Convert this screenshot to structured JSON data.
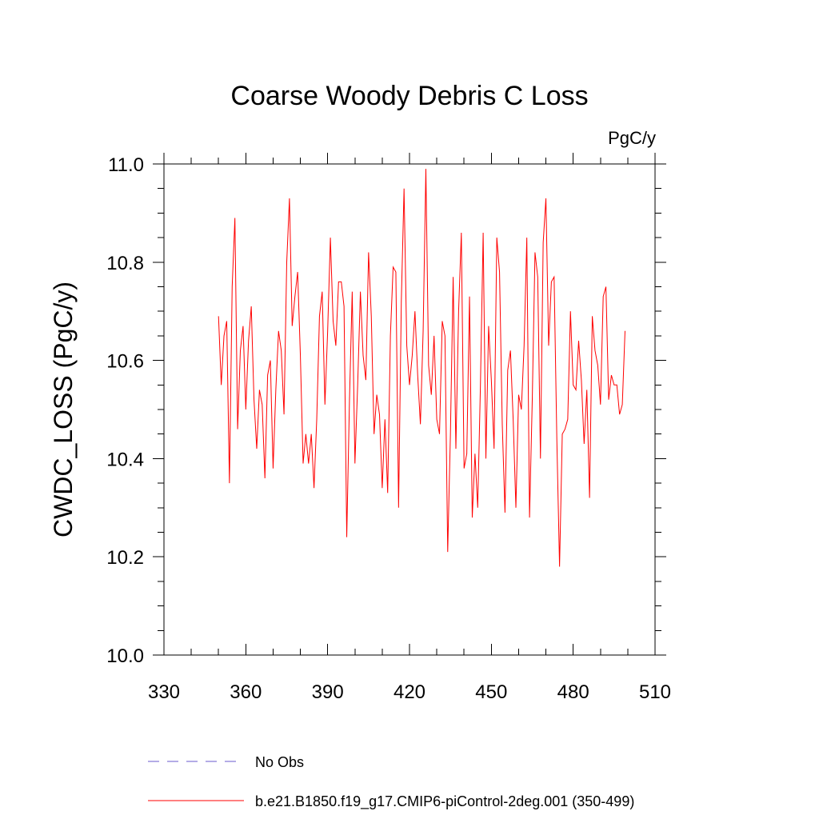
{
  "chart_data": {
    "type": "line",
    "title": "Coarse Woody Debris C Loss",
    "units_label": "PgC/y",
    "ylabel": "CWDC_LOSS  (PgC/y)",
    "xlabel": "",
    "xlim": [
      330,
      510
    ],
    "ylim": [
      10.0,
      11.0
    ],
    "xticks": [
      330,
      360,
      390,
      420,
      450,
      480,
      510
    ],
    "xtick_labels": [
      "330",
      "360",
      "390",
      "420",
      "450",
      "480",
      "510"
    ],
    "yticks": [
      10.0,
      10.2,
      10.4,
      10.6,
      10.8,
      11.0
    ],
    "ytick_labels": [
      "10.0",
      "10.2",
      "10.4",
      "10.6",
      "10.8",
      "11.0"
    ],
    "grid": false,
    "legend_position": "bottom",
    "legend": [
      {
        "label": "No Obs",
        "color": "#6a5acd",
        "style": "dashed"
      },
      {
        "label": "b.e21.B1850.f19_g17.CMIP6-piControl-2deg.001 (350-499)",
        "color": "#ff0000",
        "style": "solid"
      }
    ],
    "series": [
      {
        "name": "b.e21.B1850.f19_g17.CMIP6-piControl-2deg.001 (350-499)",
        "color": "#ff0000",
        "x_start": 350,
        "x_step": 1,
        "values": [
          10.69,
          10.55,
          10.65,
          10.68,
          10.35,
          10.75,
          10.89,
          10.46,
          10.62,
          10.67,
          10.5,
          10.64,
          10.71,
          10.52,
          10.42,
          10.54,
          10.51,
          10.36,
          10.57,
          10.6,
          10.38,
          10.54,
          10.66,
          10.62,
          10.49,
          10.8,
          10.93,
          10.67,
          10.73,
          10.78,
          10.61,
          10.39,
          10.45,
          10.39,
          10.45,
          10.34,
          10.48,
          10.69,
          10.74,
          10.51,
          10.66,
          10.85,
          10.68,
          10.63,
          10.76,
          10.76,
          10.71,
          10.24,
          10.52,
          10.74,
          10.39,
          10.55,
          10.74,
          10.61,
          10.56,
          10.82,
          10.69,
          10.45,
          10.53,
          10.49,
          10.34,
          10.48,
          10.33,
          10.65,
          10.79,
          10.78,
          10.3,
          10.72,
          10.95,
          10.63,
          10.55,
          10.61,
          10.7,
          10.57,
          10.47,
          10.66,
          10.99,
          10.59,
          10.53,
          10.65,
          10.48,
          10.45,
          10.68,
          10.65,
          10.21,
          10.45,
          10.77,
          10.42,
          10.7,
          10.86,
          10.38,
          10.41,
          10.73,
          10.28,
          10.41,
          10.3,
          10.55,
          10.86,
          10.4,
          10.67,
          10.56,
          10.42,
          10.85,
          10.78,
          10.47,
          10.29,
          10.58,
          10.62,
          10.48,
          10.3,
          10.53,
          10.5,
          10.63,
          10.85,
          10.28,
          10.52,
          10.82,
          10.77,
          10.4,
          10.84,
          10.93,
          10.63,
          10.76,
          10.77,
          10.44,
          10.18,
          10.45,
          10.46,
          10.48,
          10.7,
          10.55,
          10.54,
          10.64,
          10.56,
          10.43,
          10.54,
          10.32,
          10.69,
          10.62,
          10.59,
          10.51,
          10.73,
          10.75,
          10.52,
          10.57,
          10.55,
          10.55,
          10.49,
          10.51,
          10.66
        ]
      }
    ]
  }
}
